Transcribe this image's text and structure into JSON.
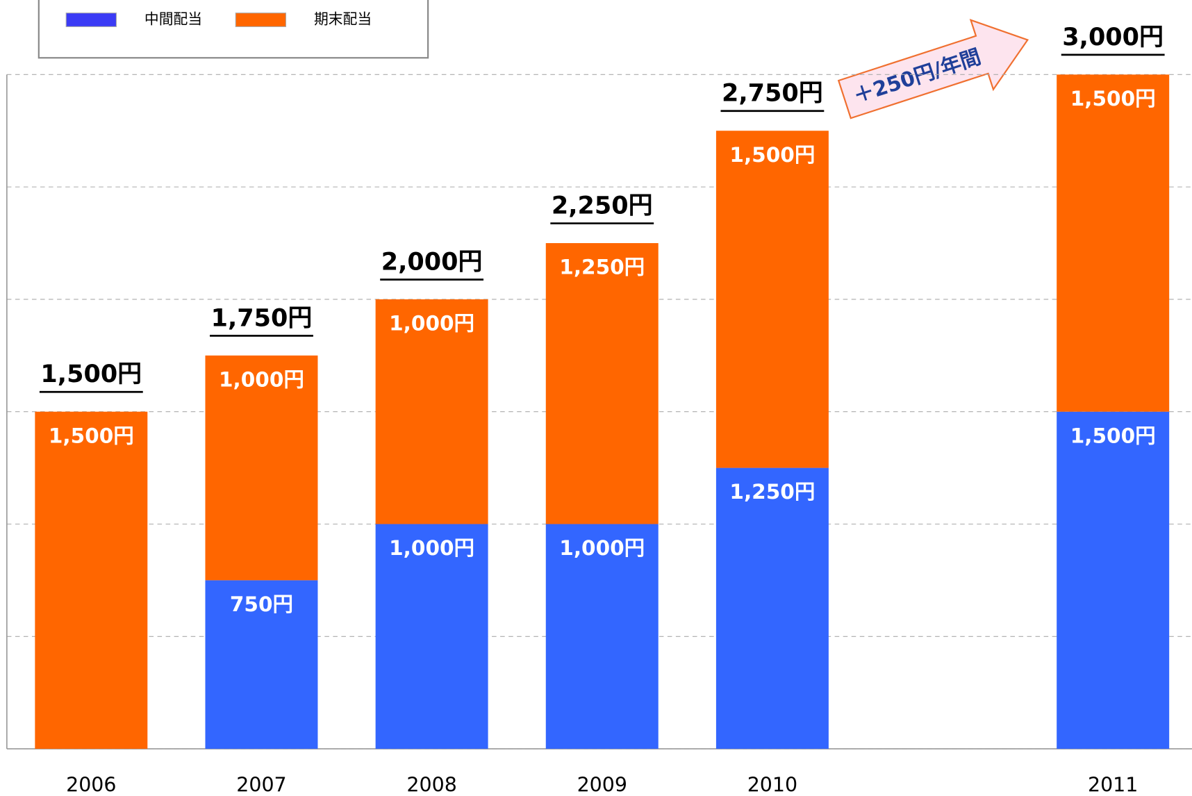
{
  "chart_data": {
    "type": "stacked_bar",
    "categories": [
      "2006",
      "2007",
      "2008",
      "2009",
      "2010",
      null,
      "2011"
    ],
    "series": [
      {
        "name": "中間配当",
        "color": "#3366ff",
        "values": [
          null,
          750,
          1000,
          1000,
          1250,
          null,
          1500
        ],
        "value_labels": [
          null,
          "750円",
          "1,000円",
          "1,000円",
          "1,250円",
          null,
          "1,500円"
        ]
      },
      {
        "name": "期末配当",
        "color": "#ff6600",
        "values": [
          1500,
          1000,
          1000,
          1250,
          1500,
          null,
          1500
        ],
        "value_labels": [
          "1,500円",
          "1,000円",
          "1,000円",
          "1,250円",
          "1,500円",
          null,
          "1,500円"
        ]
      }
    ],
    "totals": [
      1500,
      1750,
      2000,
      2250,
      2750,
      null,
      3000
    ],
    "total_labels": [
      "1,500円",
      "1,750円",
      "2,000円",
      "2,250円",
      "2,750円",
      null,
      "3,000円"
    ],
    "annotation": "＋250円/年間",
    "ylim": [
      0,
      3000
    ],
    "yticks": [
      0,
      500,
      1000,
      1500,
      2000,
      2500,
      3000
    ],
    "grid": true
  }
}
